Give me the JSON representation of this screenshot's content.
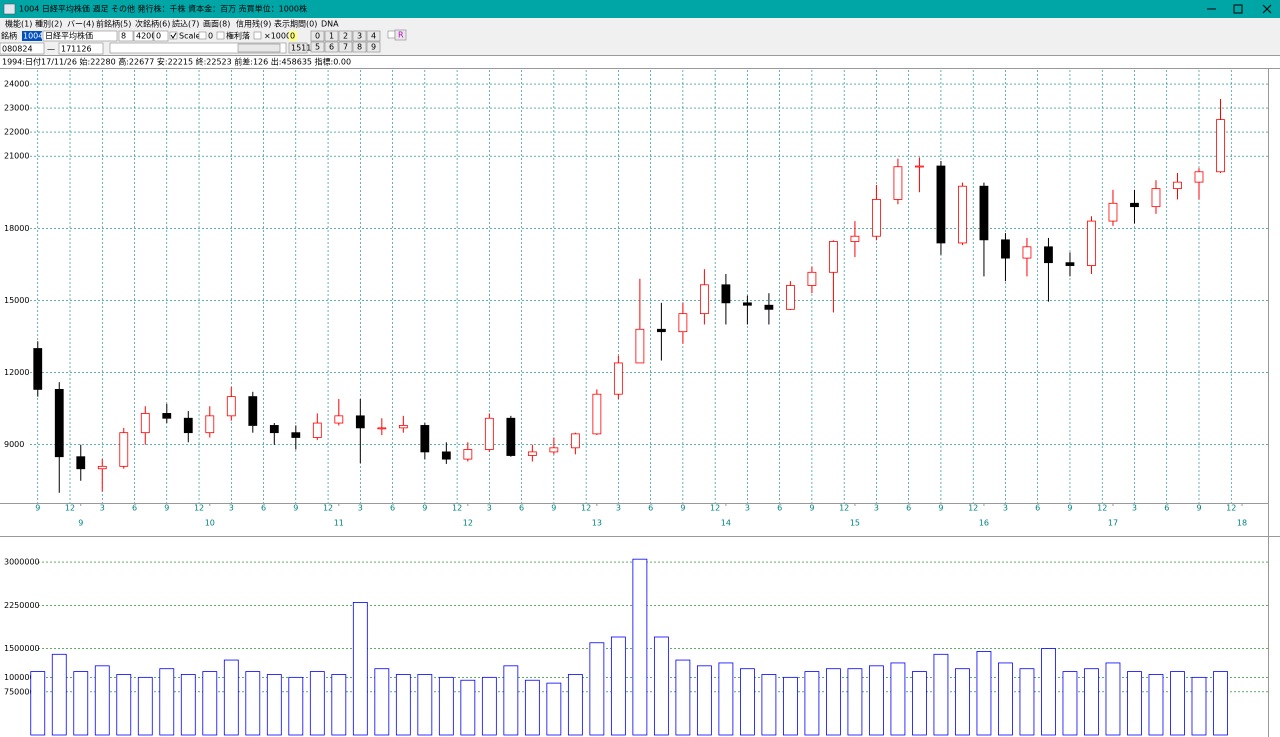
{
  "window": {
    "title": "1004 日経平均株価 週足 その他 発行株：千株 資本金：百万 売買単位：1000株",
    "menu": [
      "機能(1)",
      "種別(2)",
      "バー(4)",
      "前銘柄(5)",
      "次銘柄(6)",
      "読込(7)",
      "画面(8)",
      "信用残(9)",
      "表示期間(0)",
      "DNA"
    ],
    "toolbar": {
      "code_label": "銘柄",
      "code": "1004",
      "name": "日経平均株価",
      "fields": [
        "8",
        "4200",
        "0"
      ],
      "checks": [
        "Scale",
        "0",
        "権利落",
        "×1000"
      ],
      "count": "0",
      "buttons": [
        "0",
        "1",
        "2",
        "3",
        "4",
        "5",
        "6",
        "7",
        "8",
        "9"
      ],
      "r": "R",
      "from": "080824",
      "dash": "—",
      "to": "171126",
      "total": "1511"
    },
    "info": "1994:日付17/11/26 始:22280 高:22677 安:22215 終:22523 前差:126 出:458635 指標:0.00"
  },
  "chart_data": [
    {
      "type": "candlestick",
      "up_color": "#ff0000",
      "down_color": "#000000",
      "grid": true,
      "x": [
        "2008-09",
        "2008-11",
        "2009-01",
        "2009-03",
        "2009-05",
        "2009-07",
        "2009-09",
        "2009-11",
        "2010-01",
        "2010-03",
        "2010-05",
        "2010-07",
        "2010-09",
        "2010-11",
        "2011-01",
        "2011-03",
        "2011-05",
        "2011-07",
        "2011-09",
        "2011-11",
        "2012-01",
        "2012-03",
        "2012-05",
        "2012-07",
        "2012-09",
        "2012-11",
        "2013-01",
        "2013-03",
        "2013-05",
        "2013-07",
        "2013-09",
        "2013-11",
        "2014-01",
        "2014-03",
        "2014-05",
        "2014-07",
        "2014-09",
        "2014-11",
        "2015-01",
        "2015-03",
        "2015-05",
        "2015-07",
        "2015-09",
        "2015-11",
        "2016-01",
        "2016-03",
        "2016-05",
        "2016-07",
        "2016-09",
        "2016-11",
        "2017-01",
        "2017-03",
        "2017-05",
        "2017-07",
        "2017-09",
        "2017-11"
      ],
      "open": [
        13000,
        11300,
        8500,
        8000,
        8100,
        9500,
        10300,
        10100,
        9500,
        10200,
        11000,
        9800,
        9500,
        9300,
        9900,
        10200,
        9700,
        9700,
        9800,
        8700,
        8400,
        8800,
        10100,
        8550,
        8700,
        8870,
        9450,
        11100,
        12400,
        13800,
        13700,
        14450,
        15650,
        14900,
        14800,
        14630,
        15620,
        16170,
        17450,
        17670,
        19200,
        20560,
        20590,
        17390,
        19750,
        17520,
        16760,
        17230,
        16570,
        16450,
        18300,
        19040,
        18900,
        19650,
        19920,
        20350
      ],
      "high": [
        13300,
        11600,
        9000,
        8400,
        9700,
        10600,
        10700,
        10400,
        10600,
        11400,
        11200,
        9900,
        9800,
        10300,
        10900,
        10900,
        10100,
        10200,
        9900,
        9100,
        9100,
        10300,
        10200,
        9000,
        9300,
        9500,
        11300,
        12700,
        15900,
        14900,
        14900,
        16300,
        16100,
        15200,
        15300,
        15800,
        16400,
        17500,
        18300,
        19800,
        20900,
        20950,
        20800,
        19900,
        19900,
        17800,
        17600,
        17600,
        17000,
        18500,
        19600,
        19600,
        20000,
        20300,
        20500,
        23380
      ],
      "low": [
        11000,
        7000,
        7500,
        7050,
        8000,
        9000,
        9900,
        9100,
        9300,
        10000,
        9500,
        9000,
        8800,
        9200,
        9800,
        8230,
        9400,
        9500,
        8400,
        8200,
        8300,
        8700,
        8500,
        8300,
        8600,
        8600,
        9400,
        10900,
        12400,
        12500,
        13200,
        14000,
        14000,
        14000,
        14000,
        14600,
        15300,
        14500,
        16800,
        17500,
        19000,
        19500,
        16900,
        17300,
        16000,
        15800,
        16000,
        14950,
        16000,
        16100,
        18100,
        18200,
        18600,
        19200,
        19200,
        20300
      ],
      "close": [
        11300,
        8500,
        8000,
        8100,
        9500,
        10300,
        10100,
        9500,
        10200,
        11000,
        9800,
        9500,
        9300,
        9900,
        10200,
        9700,
        9700,
        9800,
        8700,
        8400,
        8800,
        10100,
        8550,
        8700,
        8870,
        9450,
        11100,
        12400,
        13800,
        13700,
        14450,
        15650,
        14900,
        14800,
        14630,
        15620,
        16170,
        17450,
        17670,
        19200,
        20560,
        20590,
        17390,
        19750,
        17520,
        16760,
        17230,
        16570,
        16450,
        18300,
        19040,
        18900,
        19650,
        19920,
        20350,
        22520
      ],
      "xlim": [
        "2008-08",
        "2018-01"
      ],
      "ylim": [
        6700,
        24500
      ],
      "yticks": [
        9000,
        12000,
        15000,
        18000,
        21000,
        22000,
        23000,
        24000
      ],
      "xticks": [
        {
          "value": "2008-09",
          "label": "9"
        },
        {
          "value": "2008-12",
          "label": "12"
        },
        {
          "value": "2009-03",
          "label": "3"
        },
        {
          "value": "2009-06",
          "label": "6"
        },
        {
          "value": "2009-09",
          "label": "9"
        },
        {
          "value": "2009-12",
          "label": "12"
        },
        {
          "value": "2010-03",
          "label": "3"
        },
        {
          "value": "2010-06",
          "label": "6"
        },
        {
          "value": "2010-09",
          "label": "9"
        },
        {
          "value": "2010-12",
          "label": "12"
        },
        {
          "value": "2011-03",
          "label": "3"
        },
        {
          "value": "2011-06",
          "label": "6"
        },
        {
          "value": "2011-09",
          "label": "9"
        },
        {
          "value": "2011-12",
          "label": "12"
        },
        {
          "value": "2012-03",
          "label": "3"
        },
        {
          "value": "2012-06",
          "label": "6"
        },
        {
          "value": "2012-09",
          "label": "9"
        },
        {
          "value": "2012-12",
          "label": "12"
        },
        {
          "value": "2013-03",
          "label": "3"
        },
        {
          "value": "2013-06",
          "label": "6"
        },
        {
          "value": "2013-09",
          "label": "9"
        },
        {
          "value": "2013-12",
          "label": "12"
        },
        {
          "value": "2014-03",
          "label": "3"
        },
        {
          "value": "2014-06",
          "label": "6"
        },
        {
          "value": "2014-09",
          "label": "9"
        },
        {
          "value": "2014-12",
          "label": "12"
        },
        {
          "value": "2015-03",
          "label": "3"
        },
        {
          "value": "2015-06",
          "label": "6"
        },
        {
          "value": "2015-09",
          "label": "9"
        },
        {
          "value": "2015-12",
          "label": "12"
        },
        {
          "value": "2016-03",
          "label": "3"
        },
        {
          "value": "2016-06",
          "label": "6"
        },
        {
          "value": "2016-09",
          "label": "9"
        },
        {
          "value": "2016-12",
          "label": "12"
        },
        {
          "value": "2017-03",
          "label": "3"
        },
        {
          "value": "2017-06",
          "label": "6"
        },
        {
          "value": "2017-09",
          "label": "9"
        },
        {
          "value": "2017-12",
          "label": "12"
        }
      ],
      "year_ticks": [
        {
          "value": "2009-01",
          "label": "9"
        },
        {
          "value": "2010-01",
          "label": "10"
        },
        {
          "value": "2011-01",
          "label": "11"
        },
        {
          "value": "2012-01",
          "label": "12"
        },
        {
          "value": "2013-01",
          "label": "13"
        },
        {
          "value": "2014-01",
          "label": "14"
        },
        {
          "value": "2015-01",
          "label": "15"
        },
        {
          "value": "2016-01",
          "label": "16"
        },
        {
          "value": "2017-01",
          "label": "17"
        },
        {
          "value": "2018-01",
          "label": "18"
        }
      ]
    },
    {
      "type": "bar",
      "color": "#0000ff",
      "grid": true,
      "x": [
        "2008-09",
        "2008-11",
        "2009-01",
        "2009-03",
        "2009-05",
        "2009-07",
        "2009-09",
        "2009-11",
        "2010-01",
        "2010-03",
        "2010-05",
        "2010-07",
        "2010-09",
        "2010-11",
        "2011-01",
        "2011-03",
        "2011-05",
        "2011-07",
        "2011-09",
        "2011-11",
        "2012-01",
        "2012-03",
        "2012-05",
        "2012-07",
        "2012-09",
        "2012-11",
        "2013-01",
        "2013-03",
        "2013-05",
        "2013-07",
        "2013-09",
        "2013-11",
        "2014-01",
        "2014-03",
        "2014-05",
        "2014-07",
        "2014-09",
        "2014-11",
        "2015-01",
        "2015-03",
        "2015-05",
        "2015-07",
        "2015-09",
        "2015-11",
        "2016-01",
        "2016-03",
        "2016-05",
        "2016-07",
        "2016-09",
        "2016-11",
        "2017-01",
        "2017-03",
        "2017-05",
        "2017-07",
        "2017-09",
        "2017-11"
      ],
      "values": [
        1100000,
        1400000,
        1100000,
        1200000,
        1050000,
        1000000,
        1150000,
        1050000,
        1100000,
        1300000,
        1100000,
        1050000,
        1000000,
        1100000,
        1050000,
        2300000,
        1150000,
        1050000,
        1050000,
        1000000,
        950000,
        1000000,
        1200000,
        950000,
        900000,
        1050000,
        1600000,
        1700000,
        3050000,
        1700000,
        1300000,
        1200000,
        1250000,
        1150000,
        1050000,
        1000000,
        1100000,
        1150000,
        1150000,
        1200000,
        1250000,
        1100000,
        1400000,
        1150000,
        1450000,
        1250000,
        1150000,
        1500000,
        1100000,
        1150000,
        1250000,
        1100000,
        1050000,
        1100000,
        1000000,
        1100000
      ],
      "xlim": [
        "2008-08",
        "2018-01"
      ],
      "ylim": [
        0,
        3400000
      ],
      "yticks": [
        750000,
        1000000,
        1500000,
        2250000,
        3000000
      ]
    }
  ]
}
